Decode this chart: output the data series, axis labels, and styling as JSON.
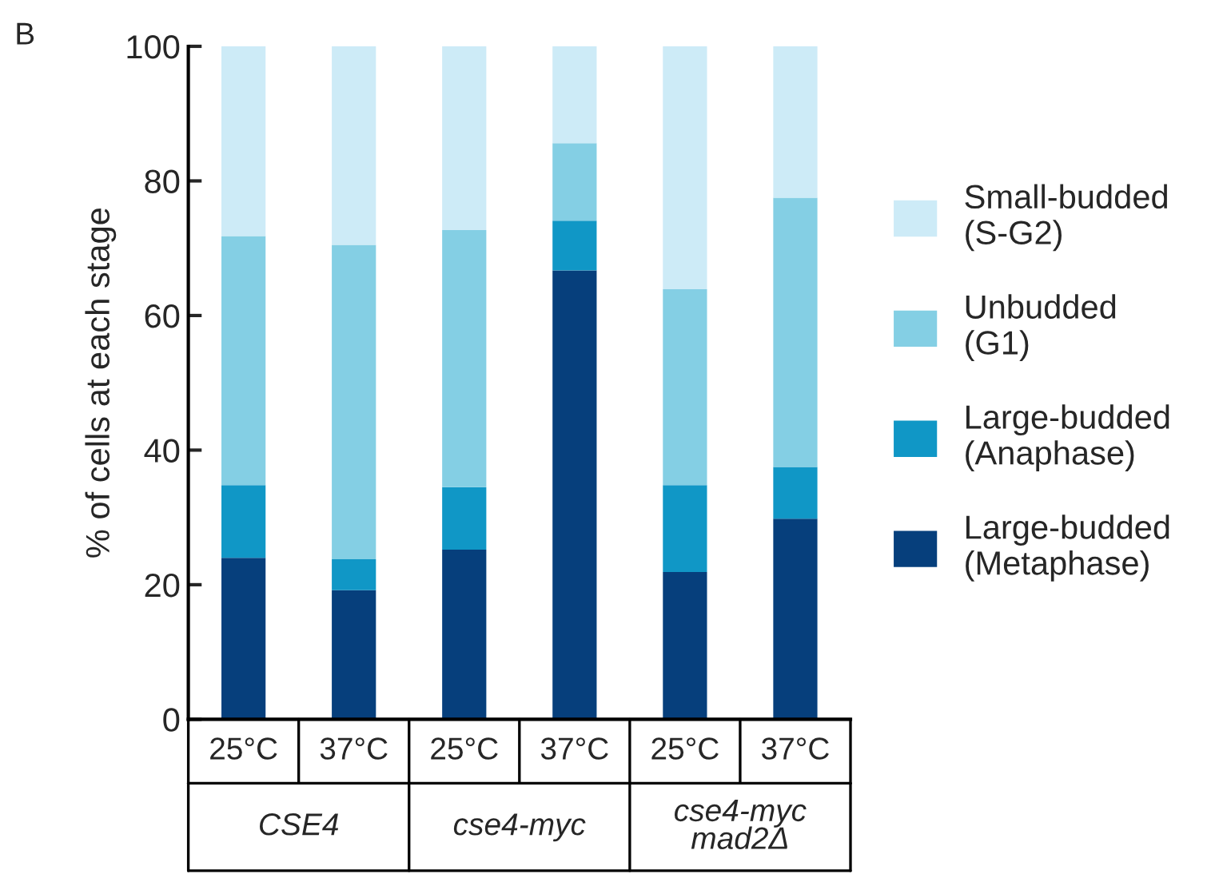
{
  "chart_data": {
    "type": "bar",
    "stacked": true,
    "ylabel": "% of cells at each stage",
    "categories": [
      "25°C",
      "37°C",
      "25°C",
      "37°C",
      "25°C",
      "37°C"
    ],
    "series": [
      {
        "name": "Large-budded\n(Metaphase)",
        "color": "#063f7c",
        "values": [
          24.0,
          19.2,
          25.2,
          66.7,
          21.9,
          29.8
        ]
      },
      {
        "name": "Large-budded\n(Anaphase)",
        "color": "#1097c6",
        "values": [
          10.8,
          4.6,
          9.3,
          7.4,
          12.9,
          7.7
        ]
      },
      {
        "name": "Unbudded\n(G1)",
        "color": "#84cfe4",
        "values": [
          37.0,
          46.7,
          38.2,
          11.5,
          29.1,
          40.0
        ]
      },
      {
        "name": "Small-budded\n(S-G2)",
        "color": "#cdebf7",
        "values": [
          28.2,
          29.5,
          27.3,
          14.4,
          36.1,
          22.5
        ]
      }
    ],
    "ylim": [
      0,
      100
    ],
    "yticks": [
      0,
      20,
      40,
      60,
      80,
      100
    ],
    "grid": false,
    "legend": "right",
    "annotations": [
      "B",
      "CSE4",
      "cse4-myc",
      "cse4-myc\nmad2Δ"
    ]
  }
}
